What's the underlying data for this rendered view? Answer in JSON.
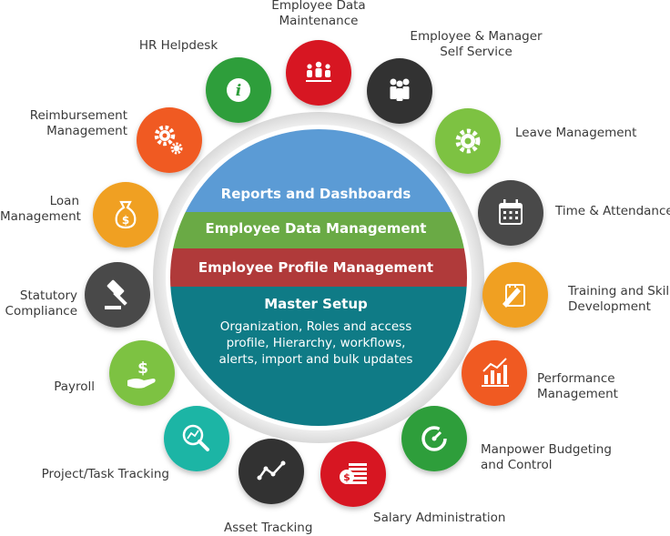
{
  "core": {
    "band1": "Reports and Dashboards",
    "band2": "Employee Data Management",
    "band3": "Employee Profile Management",
    "band4_title": "Master Setup",
    "band4_line1": "Organization, Roles and access",
    "band4_line2": "profile, Hierarchy, workflows,",
    "band4_line3": "alerts, import and bulk updates"
  },
  "modules": [
    {
      "label": "Employee Data\nMaintenance",
      "icon": "people-group-icon",
      "color": "#d71920"
    },
    {
      "label": "Employee & Manager\nSelf Service",
      "icon": "team-icon",
      "color": "#333333"
    },
    {
      "label": "Leave Management",
      "icon": "gear-icon",
      "color": "#7dc242"
    },
    {
      "label": "Time & Attendance",
      "icon": "calendar-icon",
      "color": "#4a4a4a"
    },
    {
      "label": "Training and Skill\nDevelopment",
      "icon": "pencil-note-icon",
      "color": "#f0a020"
    },
    {
      "label": "Performance\nManagement",
      "icon": "bar-chart-icon",
      "color": "#f05a22"
    },
    {
      "label": "Manpower Budgeting\nand Control",
      "icon": "gauge-icon",
      "color": "#2e9e3a"
    },
    {
      "label": "Salary Administration",
      "icon": "money-icon",
      "color": "#d71920"
    },
    {
      "label": "Asset Tracking",
      "icon": "line-graph-icon",
      "color": "#333333"
    },
    {
      "label": "Project/Task Tracking",
      "icon": "magnifier-chart-icon",
      "color": "#1fb5a5"
    },
    {
      "label": "Payroll",
      "icon": "hand-dollar-icon",
      "color": "#7dc242"
    },
    {
      "label": "Statutory\nCompliance",
      "icon": "gavel-icon",
      "color": "#4a4a4a"
    },
    {
      "label": "Loan\nManagement",
      "icon": "money-bag-icon",
      "color": "#f0a020"
    },
    {
      "label": "Reimbursement\nManagement",
      "icon": "gears-icon",
      "color": "#f05a22"
    },
    {
      "label": "HR Helpdesk",
      "icon": "info-icon",
      "color": "#2e9e3a"
    }
  ],
  "colors": {
    "band1": "#5b9bd5",
    "band2": "#6aaa45",
    "band3": "#b03a3a",
    "band4": "#0f7b86"
  }
}
